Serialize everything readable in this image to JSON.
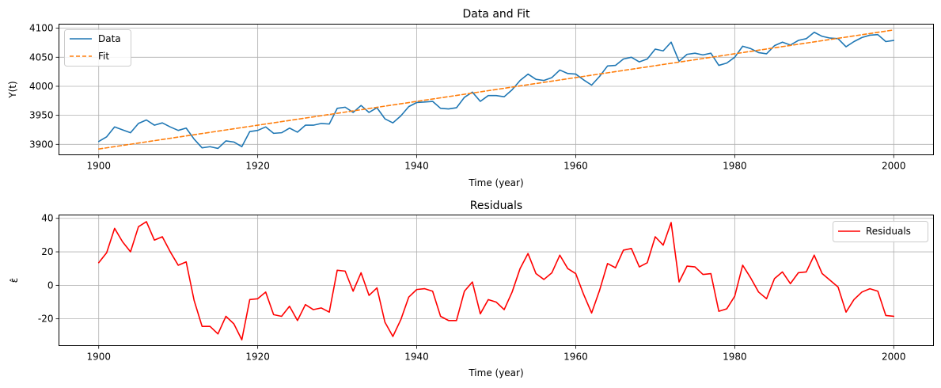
{
  "chart_data": [
    {
      "type": "line",
      "title": "Data and Fit",
      "xlabel": "Time (year)",
      "ylabel": "Y(t)",
      "xlim": [
        1895,
        2005
      ],
      "ylim": [
        3882,
        4107
      ],
      "xticks": [
        1900,
        1920,
        1940,
        1960,
        1980,
        2000
      ],
      "yticks": [
        3900,
        3950,
        4000,
        4050,
        4100
      ],
      "grid": true,
      "legend": "top-left",
      "series": [
        {
          "name": "Data",
          "color": "#1f77b4",
          "style": "solid",
          "x": [
            1900,
            1901,
            1902,
            1903,
            1904,
            1905,
            1906,
            1907,
            1908,
            1909,
            1910,
            1911,
            1912,
            1913,
            1914,
            1915,
            1916,
            1917,
            1918,
            1919,
            1920,
            1921,
            1922,
            1923,
            1924,
            1925,
            1926,
            1927,
            1928,
            1929,
            1930,
            1931,
            1932,
            1933,
            1934,
            1935,
            1936,
            1937,
            1938,
            1939,
            1940,
            1941,
            1942,
            1943,
            1944,
            1945,
            1946,
            1947,
            1948,
            1949,
            1950,
            1951,
            1952,
            1953,
            1954,
            1955,
            1956,
            1957,
            1958,
            1959,
            1960,
            1961,
            1962,
            1963,
            1964,
            1965,
            1966,
            1967,
            1968,
            1969,
            1970,
            1971,
            1972,
            1973,
            1974,
            1975,
            1976,
            1977,
            1978,
            1979,
            1980,
            1981,
            1982,
            1983,
            1984,
            1985,
            1986,
            1987,
            1988,
            1989,
            1990,
            1991,
            1992,
            1993,
            1994,
            1995,
            1996,
            1997,
            1998,
            1999,
            2000
          ],
          "values": [
            3905,
            3913,
            3930,
            3925,
            3920,
            3936,
            3942,
            3933,
            3937,
            3930,
            3924,
            3928,
            3909,
            3894,
            3896,
            3893,
            3906,
            3904,
            3896,
            3922,
            3924,
            3930,
            3919,
            3920,
            3928,
            3921,
            3933,
            3933,
            3936,
            3935,
            3962,
            3964,
            3955,
            3967,
            3955,
            3963,
            3944,
            3937,
            3949,
            3965,
            3972,
            3973,
            3974,
            3962,
            3961,
            3963,
            3981,
            3990,
            3974,
            3984,
            3984,
            3982,
            3994,
            4010,
            4021,
            4012,
            4010,
            4015,
            4028,
            4022,
            4021,
            4011,
            4002,
            4017,
            4035,
            4036,
            4047,
            4050,
            4042,
            4047,
            4064,
            4061,
            4076,
            4043,
            4055,
            4057,
            4054,
            4057,
            4036,
            4040,
            4050,
            4069,
            4065,
            4058,
            4056,
            4070,
            4076,
            4071,
            4079,
            4082,
            4093,
            4086,
            4083,
            4082,
            4068,
            4077,
            4084,
            4088,
            4089,
            4077,
            4079
          ]
        },
        {
          "name": "Fit",
          "color": "#ff7f0e",
          "style": "dashed",
          "x": [
            1900,
            2000
          ],
          "values": [
            3892,
            4097
          ]
        }
      ]
    },
    {
      "type": "line",
      "title": "Residuals",
      "xlabel": "Time (year)",
      "ylabel": "ε̂",
      "xlim": [
        1895,
        2005
      ],
      "ylim": [
        -36,
        42
      ],
      "xticks": [
        1900,
        1920,
        1940,
        1960,
        1980,
        2000
      ],
      "yticks": [
        -20,
        0,
        20,
        40
      ],
      "grid": true,
      "legend": "top-right",
      "series": [
        {
          "name": "Residuals",
          "color": "#ff0000",
          "style": "solid",
          "x": [
            1900,
            1901,
            1902,
            1903,
            1904,
            1905,
            1906,
            1907,
            1908,
            1909,
            1910,
            1911,
            1912,
            1913,
            1914,
            1915,
            1916,
            1917,
            1918,
            1919,
            1920,
            1921,
            1922,
            1923,
            1924,
            1925,
            1926,
            1927,
            1928,
            1929,
            1930,
            1931,
            1932,
            1933,
            1934,
            1935,
            1936,
            1937,
            1938,
            1939,
            1940,
            1941,
            1942,
            1943,
            1944,
            1945,
            1946,
            1947,
            1948,
            1949,
            1950,
            1951,
            1952,
            1953,
            1954,
            1955,
            1956,
            1957,
            1958,
            1959,
            1960,
            1961,
            1962,
            1963,
            1964,
            1965,
            1966,
            1967,
            1968,
            1969,
            1970,
            1971,
            1972,
            1973,
            1974,
            1975,
            1976,
            1977,
            1978,
            1979,
            1980,
            1981,
            1982,
            1983,
            1984,
            1985,
            1986,
            1987,
            1988,
            1989,
            1990,
            1991,
            1992,
            1993,
            1994,
            1995,
            1996,
            1997,
            1998,
            1999,
            2000
          ],
          "values": [
            13.5,
            19.5,
            34,
            26,
            20,
            35,
            38,
            27,
            29,
            20,
            12,
            14,
            -9,
            -24.5,
            -24.5,
            -29,
            -18.5,
            -23,
            -32.5,
            -8.5,
            -8,
            -4,
            -17.5,
            -18.5,
            -12.5,
            -21,
            -11.5,
            -14.5,
            -13.5,
            -16,
            9,
            8.5,
            -3.5,
            7.5,
            -6,
            -1.5,
            -22,
            -30.5,
            -20.5,
            -7,
            -2.5,
            -2,
            -3.5,
            -18.5,
            -21,
            -21,
            -3.5,
            2,
            -17,
            -8.5,
            -10,
            -14.5,
            -4,
            10,
            19,
            7,
            3.5,
            7.5,
            18,
            10,
            7,
            -5.5,
            -16.5,
            -3,
            13,
            10.5,
            21,
            22,
            11,
            13.5,
            29,
            24,
            37.5,
            2,
            11.5,
            11,
            6.5,
            7,
            -15.5,
            -14,
            -6.5,
            12,
            4.5,
            -4,
            -8,
            4,
            8,
            1,
            7.5,
            8,
            18,
            7,
            3,
            -1,
            -16,
            -8.5,
            -4,
            -2,
            -3.5,
            -18,
            -18.5
          ]
        }
      ]
    }
  ]
}
